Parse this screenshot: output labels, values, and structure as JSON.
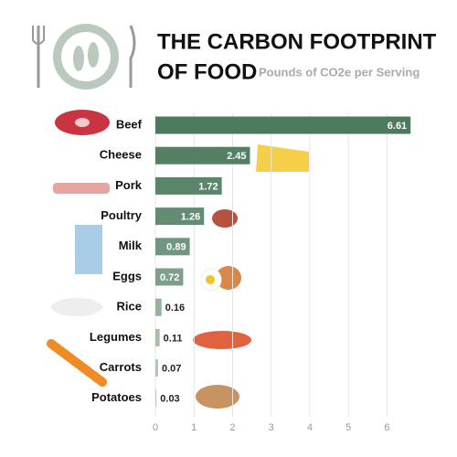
{
  "chart_data": {
    "type": "bar",
    "orientation": "horizontal",
    "title_lines": [
      "THE CARBON FOOTPRINT",
      "OF FOOD"
    ],
    "subtitle": "Pounds of CO2e per Serving",
    "categories": [
      "Beef",
      "Cheese",
      "Pork",
      "Poultry",
      "Milk",
      "Eggs",
      "Rice",
      "Legumes",
      "Carrots",
      "Potatoes"
    ],
    "values": [
      6.61,
      2.45,
      1.72,
      1.26,
      0.89,
      0.72,
      0.16,
      0.11,
      0.07,
      0.03
    ],
    "colors": [
      "#4b7a5d",
      "#537f64",
      "#5b866b",
      "#638c72",
      "#71957d",
      "#7f9f89",
      "#97b19f",
      "#a6bcad",
      "#b3c5b8",
      "#c0cec4"
    ],
    "xlim": [
      0,
      6.7
    ],
    "xticks": [
      0,
      1,
      2,
      3,
      4,
      5,
      6
    ],
    "grid": true
  }
}
